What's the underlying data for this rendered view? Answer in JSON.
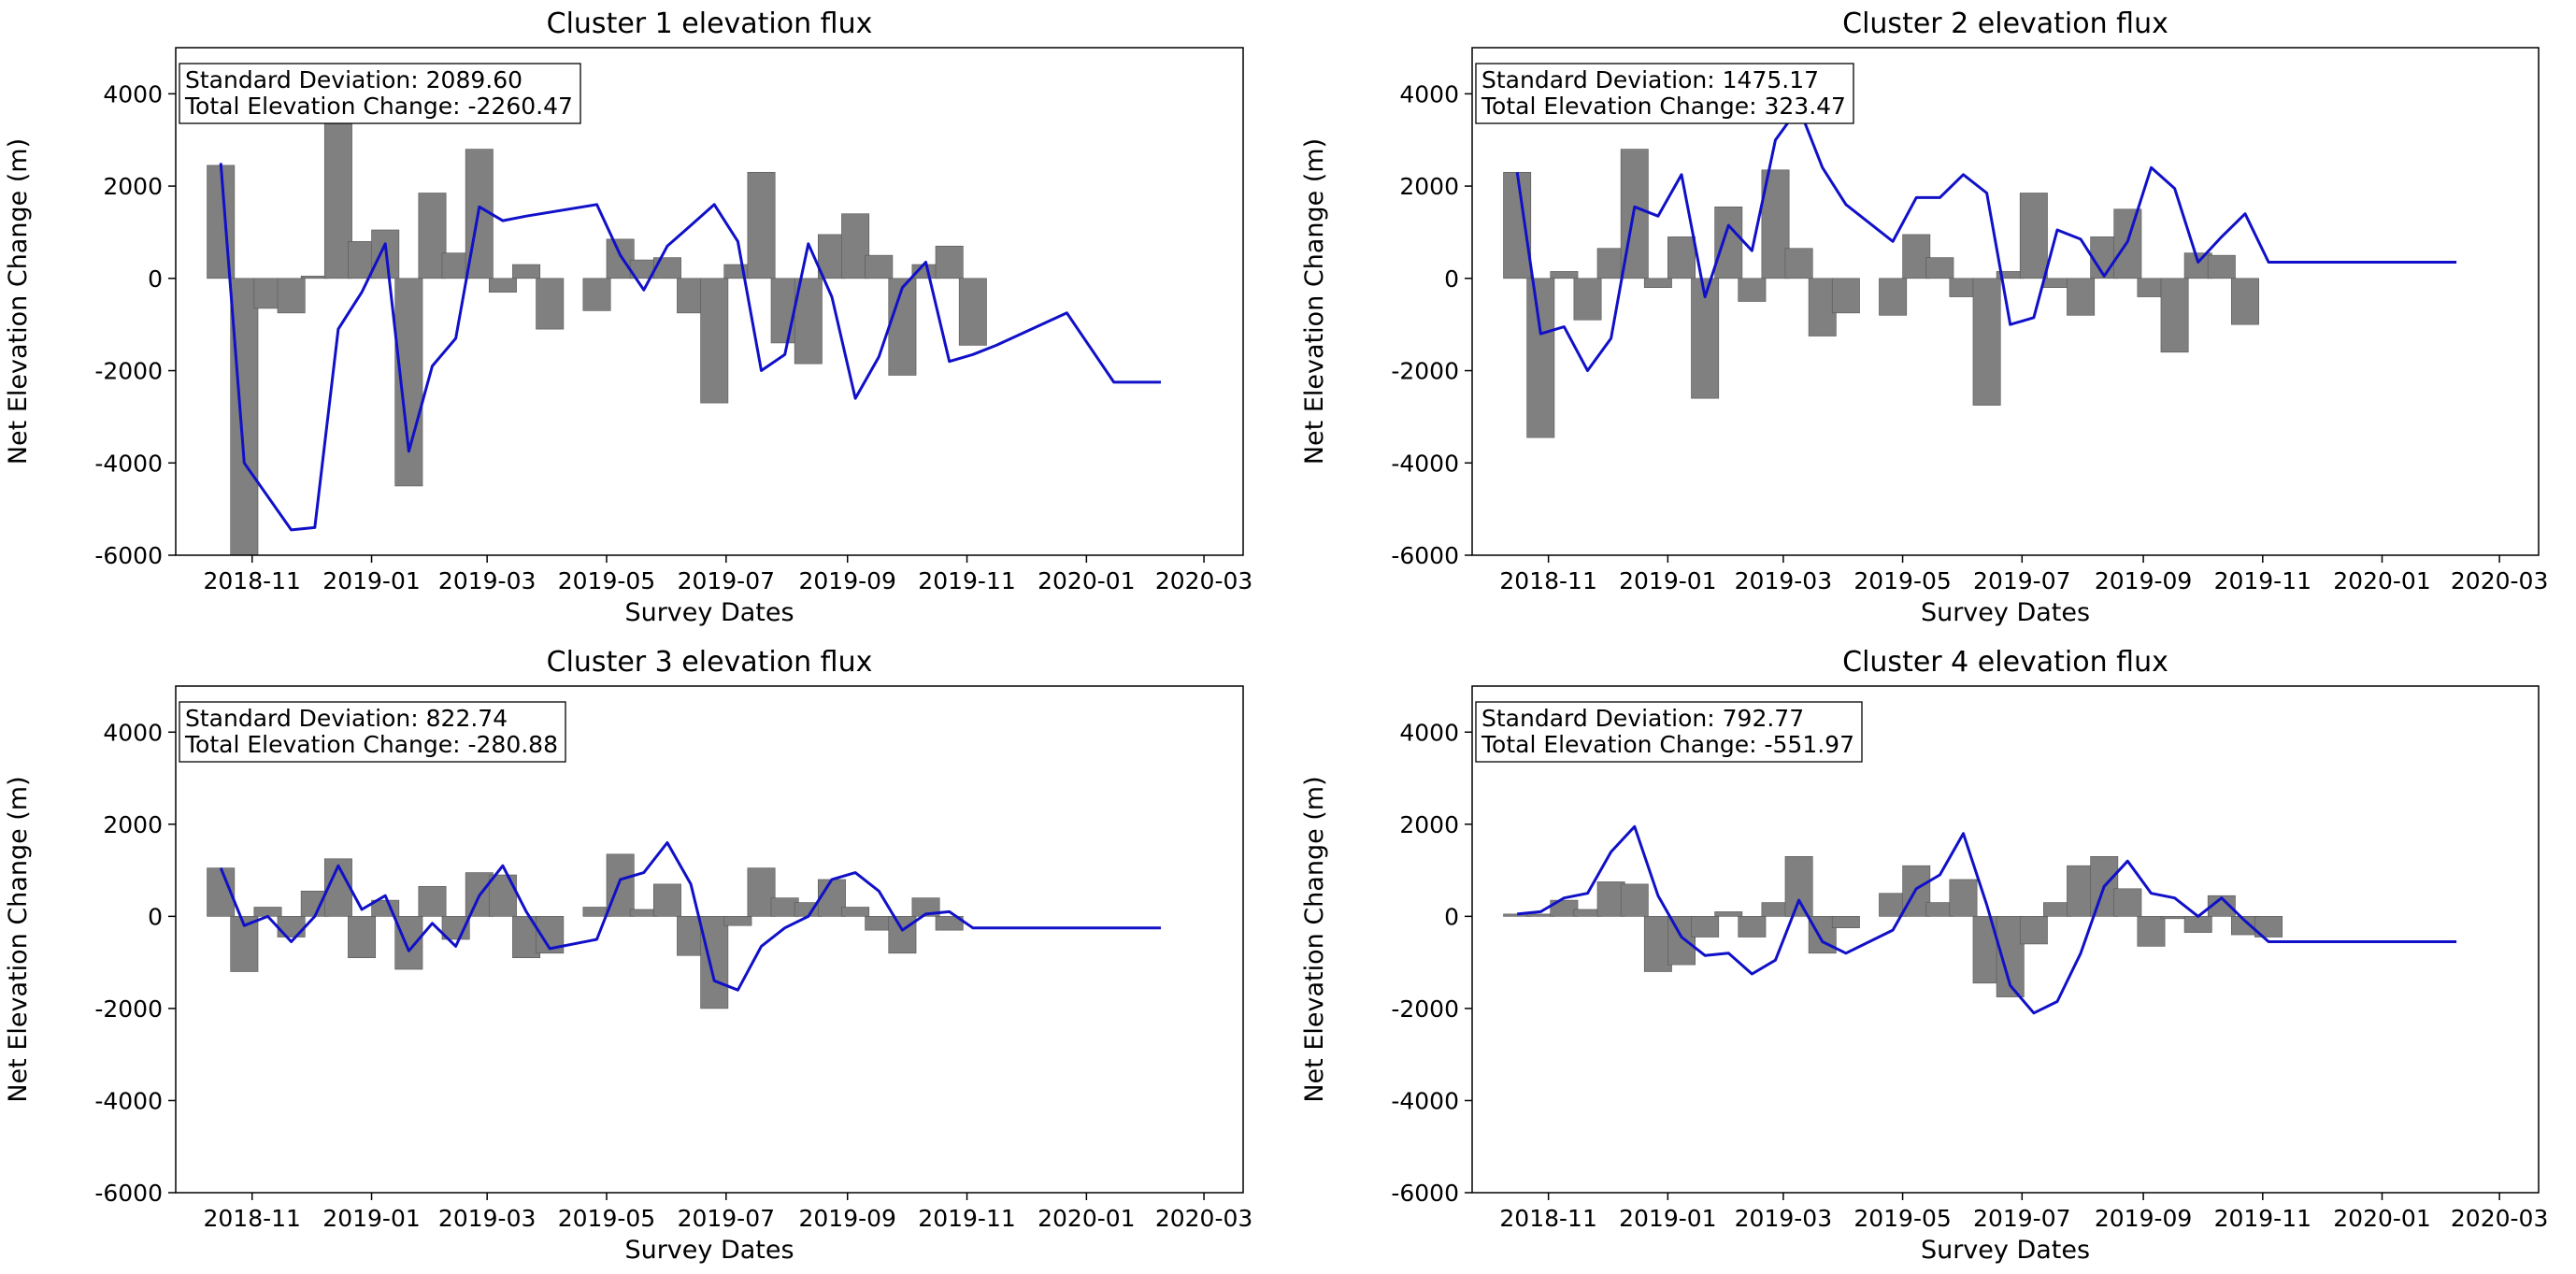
{
  "colors": {
    "bar": "#808080",
    "bar_edge": "#555555",
    "line": "#1010c8",
    "axes": "#000000"
  },
  "chart_data": [
    {
      "type": "bar+line",
      "title": "Cluster 1 elevation flux",
      "xlabel": "Survey Dates",
      "ylabel": "Net Elevation Change (m)",
      "ylim": [
        -6000,
        5000
      ],
      "xlim": [
        "2018-09-23",
        "2020-03-21"
      ],
      "yticks": [
        -6000,
        -4000,
        -2000,
        0,
        2000,
        4000
      ],
      "xticks": [
        "2018-11",
        "2019-01",
        "2019-03",
        "2019-05",
        "2019-07",
        "2019-09",
        "2019-11",
        "2020-01",
        "2020-03"
      ],
      "annotation": [
        "Standard Deviation: 2089.60",
        "Total Elevation Change: -2260.47"
      ],
      "bars": {
        "dates": [
          "2018-10-16",
          "2018-10-28",
          "2018-11-09",
          "2018-11-21",
          "2018-12-03",
          "2018-12-15",
          "2018-12-27",
          "2019-01-08",
          "2019-01-20",
          "2019-02-01",
          "2019-02-13",
          "2019-02-25",
          "2019-03-09",
          "2019-03-21",
          "2019-04-02",
          "2019-04-26",
          "2019-05-08",
          "2019-05-20",
          "2019-06-01",
          "2019-06-13",
          "2019-06-25",
          "2019-07-07",
          "2019-07-19",
          "2019-07-31",
          "2019-08-12",
          "2019-08-24",
          "2019-09-05",
          "2019-09-17",
          "2019-09-29",
          "2019-10-11",
          "2019-10-23",
          "2019-11-04",
          "2019-11-16",
          "2019-12-22",
          "2020-01-15",
          "2020-02-08"
        ],
        "values": [
          2450,
          -6000,
          -650,
          -750,
          50,
          4350,
          800,
          1050,
          -4500,
          1850,
          550,
          2800,
          -300,
          300,
          -1100,
          -700,
          850,
          400,
          450,
          -750,
          -2700,
          300,
          2300,
          -1400,
          -1850,
          950,
          1400,
          500,
          -2100,
          300,
          700,
          -1450,
          0,
          0,
          0,
          0
        ]
      },
      "line": {
        "dates": [
          "2018-10-16",
          "2018-10-28",
          "2018-11-21",
          "2018-12-03",
          "2018-12-15",
          "2018-12-27",
          "2019-01-08",
          "2019-01-20",
          "2019-02-01",
          "2019-02-13",
          "2019-02-25",
          "2019-03-09",
          "2019-03-21",
          "2019-04-26",
          "2019-05-08",
          "2019-05-20",
          "2019-06-01",
          "2019-06-13",
          "2019-06-25",
          "2019-07-07",
          "2019-07-19",
          "2019-07-31",
          "2019-08-12",
          "2019-08-24",
          "2019-09-05",
          "2019-09-17",
          "2019-09-29",
          "2019-10-11",
          "2019-10-23",
          "2019-11-04",
          "2019-11-16",
          "2019-12-22",
          "2020-01-15",
          "2020-02-08"
        ],
        "values": [
          2500,
          -4000,
          -5450,
          -5400,
          -1100,
          -300,
          750,
          -3750,
          -1900,
          -1300,
          1550,
          1250,
          1350,
          1600,
          500,
          -250,
          700,
          1150,
          1600,
          800,
          -2000,
          -1650,
          750,
          -400,
          -2600,
          -1700,
          -200,
          350,
          -1800,
          -1650,
          -1450,
          -750,
          -2250,
          -2250
        ]
      }
    },
    {
      "type": "bar+line",
      "title": "Cluster 2 elevation flux",
      "xlabel": "Survey Dates",
      "ylabel": "Net Elevation Change (m)",
      "ylim": [
        -6000,
        5000
      ],
      "xlim": [
        "2018-09-23",
        "2020-03-21"
      ],
      "yticks": [
        -6000,
        -4000,
        -2000,
        0,
        2000,
        4000
      ],
      "xticks": [
        "2018-11",
        "2019-01",
        "2019-03",
        "2019-05",
        "2019-07",
        "2019-09",
        "2019-11",
        "2020-01",
        "2020-03"
      ],
      "annotation": [
        "Standard Deviation: 1475.17",
        "Total Elevation Change: 323.47"
      ],
      "bars": {
        "dates": [
          "2018-10-16",
          "2018-10-28",
          "2018-11-09",
          "2018-11-21",
          "2018-12-03",
          "2018-12-15",
          "2018-12-27",
          "2019-01-08",
          "2019-01-20",
          "2019-02-01",
          "2019-02-13",
          "2019-02-25",
          "2019-03-09",
          "2019-03-21",
          "2019-04-02",
          "2019-04-26",
          "2019-05-08",
          "2019-05-20",
          "2019-06-01",
          "2019-06-13",
          "2019-06-25",
          "2019-07-07",
          "2019-07-19",
          "2019-07-31",
          "2019-08-12",
          "2019-08-24",
          "2019-09-05",
          "2019-09-17",
          "2019-09-29",
          "2019-10-11",
          "2019-10-23",
          "2019-11-04",
          "2019-11-16",
          "2019-12-22",
          "2020-01-15",
          "2020-02-08"
        ],
        "values": [
          2300,
          -3450,
          150,
          -900,
          650,
          2800,
          -200,
          900,
          -2600,
          1550,
          -500,
          2350,
          650,
          -1250,
          -750,
          -800,
          950,
          450,
          -400,
          -2750,
          150,
          1850,
          -200,
          -800,
          900,
          1500,
          -400,
          -1600,
          550,
          500,
          -1000,
          0,
          0,
          0,
          0,
          0
        ]
      },
      "line": {
        "dates": [
          "2018-10-16",
          "2018-10-28",
          "2018-11-09",
          "2018-11-21",
          "2018-12-03",
          "2018-12-15",
          "2018-12-27",
          "2019-01-08",
          "2019-01-20",
          "2019-02-01",
          "2019-02-13",
          "2019-02-25",
          "2019-03-09",
          "2019-03-21",
          "2019-04-02",
          "2019-04-26",
          "2019-05-08",
          "2019-05-20",
          "2019-06-01",
          "2019-06-13",
          "2019-06-25",
          "2019-07-07",
          "2019-07-19",
          "2019-07-31",
          "2019-08-12",
          "2019-08-24",
          "2019-09-05",
          "2019-09-17",
          "2019-09-29",
          "2019-10-11",
          "2019-10-23",
          "2019-11-04",
          "2019-11-16",
          "2019-12-22",
          "2020-01-15",
          "2020-02-08"
        ],
        "values": [
          2300,
          -1200,
          -1050,
          -2000,
          -1300,
          1550,
          1350,
          2250,
          -400,
          1150,
          600,
          3000,
          3700,
          2400,
          1600,
          800,
          1750,
          1750,
          2250,
          1850,
          -1000,
          -850,
          1050,
          850,
          50,
          800,
          2400,
          1950,
          350,
          900,
          1400,
          350,
          350,
          350,
          350,
          350
        ]
      }
    },
    {
      "type": "bar+line",
      "title": "Cluster 3 elevation flux",
      "xlabel": "Survey Dates",
      "ylabel": "Net Elevation Change (m)",
      "ylim": [
        -6000,
        5000
      ],
      "xlim": [
        "2018-09-23",
        "2020-03-21"
      ],
      "yticks": [
        -6000,
        -4000,
        -2000,
        0,
        2000,
        4000
      ],
      "xticks": [
        "2018-11",
        "2019-01",
        "2019-03",
        "2019-05",
        "2019-07",
        "2019-09",
        "2019-11",
        "2020-01",
        "2020-03"
      ],
      "annotation": [
        "Standard Deviation: 822.74",
        "Total Elevation Change: -280.88"
      ],
      "bars": {
        "dates": [
          "2018-10-16",
          "2018-10-28",
          "2018-11-09",
          "2018-11-21",
          "2018-12-03",
          "2018-12-15",
          "2018-12-27",
          "2019-01-08",
          "2019-01-20",
          "2019-02-01",
          "2019-02-13",
          "2019-02-25",
          "2019-03-09",
          "2019-03-21",
          "2019-04-02",
          "2019-04-26",
          "2019-05-08",
          "2019-05-20",
          "2019-06-01",
          "2019-06-13",
          "2019-06-25",
          "2019-07-07",
          "2019-07-19",
          "2019-07-31",
          "2019-08-12",
          "2019-08-24",
          "2019-09-05",
          "2019-09-17",
          "2019-09-29",
          "2019-10-11",
          "2019-10-23",
          "2019-11-04",
          "2019-11-16",
          "2019-12-22",
          "2020-02-08"
        ],
        "values": [
          1050,
          -1200,
          200,
          -450,
          550,
          1250,
          -900,
          350,
          -1150,
          650,
          -500,
          950,
          900,
          -900,
          -800,
          200,
          1350,
          150,
          700,
          -850,
          -2000,
          -200,
          1050,
          400,
          300,
          800,
          200,
          -300,
          -800,
          400,
          -300,
          0,
          0,
          0,
          0
        ]
      },
      "line": {
        "dates": [
          "2018-10-16",
          "2018-10-28",
          "2018-11-09",
          "2018-11-21",
          "2018-12-03",
          "2018-12-15",
          "2018-12-27",
          "2019-01-08",
          "2019-01-20",
          "2019-02-01",
          "2019-02-13",
          "2019-02-25",
          "2019-03-09",
          "2019-03-21",
          "2019-04-02",
          "2019-04-26",
          "2019-05-08",
          "2019-05-20",
          "2019-06-01",
          "2019-06-13",
          "2019-06-25",
          "2019-07-07",
          "2019-07-19",
          "2019-07-31",
          "2019-08-12",
          "2019-08-24",
          "2019-09-05",
          "2019-09-17",
          "2019-09-29",
          "2019-10-11",
          "2019-10-23",
          "2019-11-04",
          "2019-11-16",
          "2019-12-22",
          "2020-01-15",
          "2020-02-08"
        ],
        "values": [
          1050,
          -200,
          0,
          -550,
          0,
          1100,
          150,
          450,
          -750,
          -150,
          -650,
          450,
          1100,
          100,
          -700,
          -500,
          800,
          950,
          1600,
          700,
          -1400,
          -1600,
          -650,
          -250,
          0,
          800,
          950,
          550,
          -300,
          50,
          100,
          -250,
          -250,
          -250,
          -250,
          -250
        ]
      }
    },
    {
      "type": "bar+line",
      "title": "Cluster 4 elevation flux",
      "xlabel": "Survey Dates",
      "ylabel": "Net Elevation Change (m)",
      "ylim": [
        -6000,
        5000
      ],
      "xlim": [
        "2018-09-23",
        "2020-03-21"
      ],
      "yticks": [
        -6000,
        -4000,
        -2000,
        0,
        2000,
        4000
      ],
      "xticks": [
        "2018-11",
        "2019-01",
        "2019-03",
        "2019-05",
        "2019-07",
        "2019-09",
        "2019-11",
        "2020-01",
        "2020-03"
      ],
      "annotation": [
        "Standard Deviation: 792.77",
        "Total Elevation Change: -551.97"
      ],
      "bars": {
        "dates": [
          "2018-10-16",
          "2018-10-28",
          "2018-11-09",
          "2018-11-21",
          "2018-12-03",
          "2018-12-15",
          "2018-12-27",
          "2019-01-08",
          "2019-01-20",
          "2019-02-01",
          "2019-02-13",
          "2019-02-25",
          "2019-03-09",
          "2019-03-21",
          "2019-04-02",
          "2019-04-26",
          "2019-05-08",
          "2019-05-20",
          "2019-06-01",
          "2019-06-13",
          "2019-06-25",
          "2019-07-07",
          "2019-07-19",
          "2019-07-31",
          "2019-08-12",
          "2019-08-24",
          "2019-09-05",
          "2019-09-17",
          "2019-09-29",
          "2019-10-11",
          "2019-10-23",
          "2019-11-04",
          "2019-11-16",
          "2019-12-22",
          "2020-02-08"
        ],
        "values": [
          50,
          50,
          350,
          150,
          750,
          700,
          -1200,
          -1050,
          -450,
          100,
          -450,
          300,
          1300,
          -800,
          -250,
          500,
          1100,
          300,
          800,
          -1450,
          -1750,
          -600,
          300,
          1100,
          1300,
          600,
          -650,
          -50,
          -350,
          450,
          -400,
          -450,
          0,
          0,
          0
        ]
      },
      "line": {
        "dates": [
          "2018-10-16",
          "2018-10-28",
          "2018-11-09",
          "2018-11-21",
          "2018-12-03",
          "2018-12-15",
          "2018-12-27",
          "2019-01-08",
          "2019-01-20",
          "2019-02-01",
          "2019-02-13",
          "2019-02-25",
          "2019-03-09",
          "2019-03-21",
          "2019-04-02",
          "2019-04-26",
          "2019-05-08",
          "2019-05-20",
          "2019-06-01",
          "2019-06-13",
          "2019-06-25",
          "2019-07-07",
          "2019-07-19",
          "2019-07-31",
          "2019-08-12",
          "2019-08-24",
          "2019-09-05",
          "2019-09-17",
          "2019-09-29",
          "2019-10-11",
          "2019-10-23",
          "2019-11-04",
          "2019-11-16",
          "2019-12-22",
          "2020-01-15",
          "2020-02-08"
        ],
        "values": [
          50,
          100,
          400,
          500,
          1400,
          1950,
          450,
          -450,
          -850,
          -800,
          -1250,
          -950,
          350,
          -550,
          -800,
          -300,
          600,
          900,
          1800,
          250,
          -1500,
          -2100,
          -1850,
          -800,
          650,
          1200,
          500,
          400,
          0,
          400,
          -100,
          -550,
          -550,
          -550,
          -550,
          -550
        ]
      }
    }
  ]
}
